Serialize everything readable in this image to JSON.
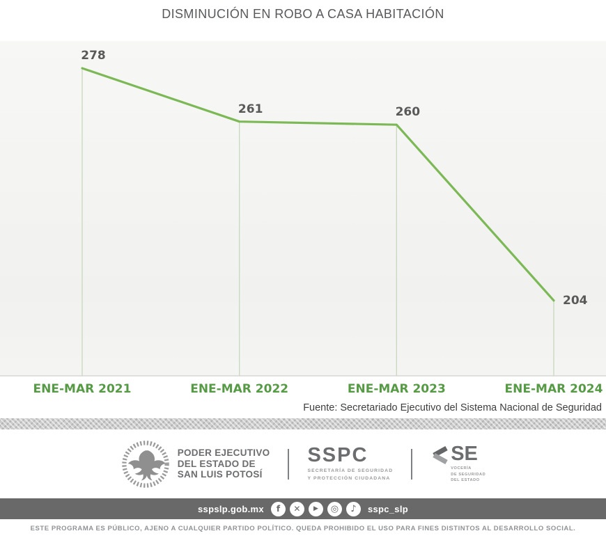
{
  "title": "DISMINUCIÓN EN ROBO A CASA HABITACIÓN",
  "chart_data": {
    "type": "line",
    "categories": [
      "ENE-MAR 2021",
      "ENE-MAR 2022",
      "ENE-MAR 2023",
      "ENE-MAR 2024"
    ],
    "values": [
      278,
      261,
      260,
      204
    ],
    "title": "DISMINUCIÓN EN ROBO A CASA HABITACIÓN",
    "xlabel": "",
    "ylabel": "",
    "ylim": [
      180,
      290
    ],
    "grid": false,
    "legend": "none",
    "annotations": "value label shown at every data point; thin vertical drop line from each point to baseline"
  },
  "source_note": "Fuente: Secretariado Ejecutivo del Sistema Nacional de Seguridad",
  "colors": {
    "line_green": "#7cb956",
    "drop_line": "#c9d8be",
    "baseline": "#d6d6d2",
    "axis_label_green": "#579a46",
    "data_label_gray": "#595959",
    "title_gray": "#58595b",
    "bar_gray": "#696969"
  },
  "footer": {
    "gov_name_lines": [
      "PODER EJECUTIVO",
      "DEL ESTADO DE",
      "SAN LUIS POTOSÍ"
    ],
    "sspc": {
      "acronym": "SSPC",
      "sub_lines": [
        "SECRETARÍA DE SEGURIDAD",
        "Y PROTECCIÓN CIUDADANA"
      ]
    },
    "se": {
      "acronym": "SE",
      "sub_lines": [
        "VOCERÍA",
        "DE SEGURIDAD",
        "DEL ESTADO"
      ]
    },
    "website": "sspslp.gob.mx",
    "social_handle": "sspc_slp",
    "social_icons": [
      "facebook-icon",
      "x-icon",
      "youtube-icon",
      "instagram-icon",
      "tiktok-icon"
    ],
    "disclaimer": "ESTE PROGRAMA ES PÚBLICO, AJENO A CUALQUIER PARTIDO POLÍTICO. QUEDA PROHIBIDO EL USO PARA FINES DISTINTOS AL DESARROLLO SOCIAL."
  }
}
